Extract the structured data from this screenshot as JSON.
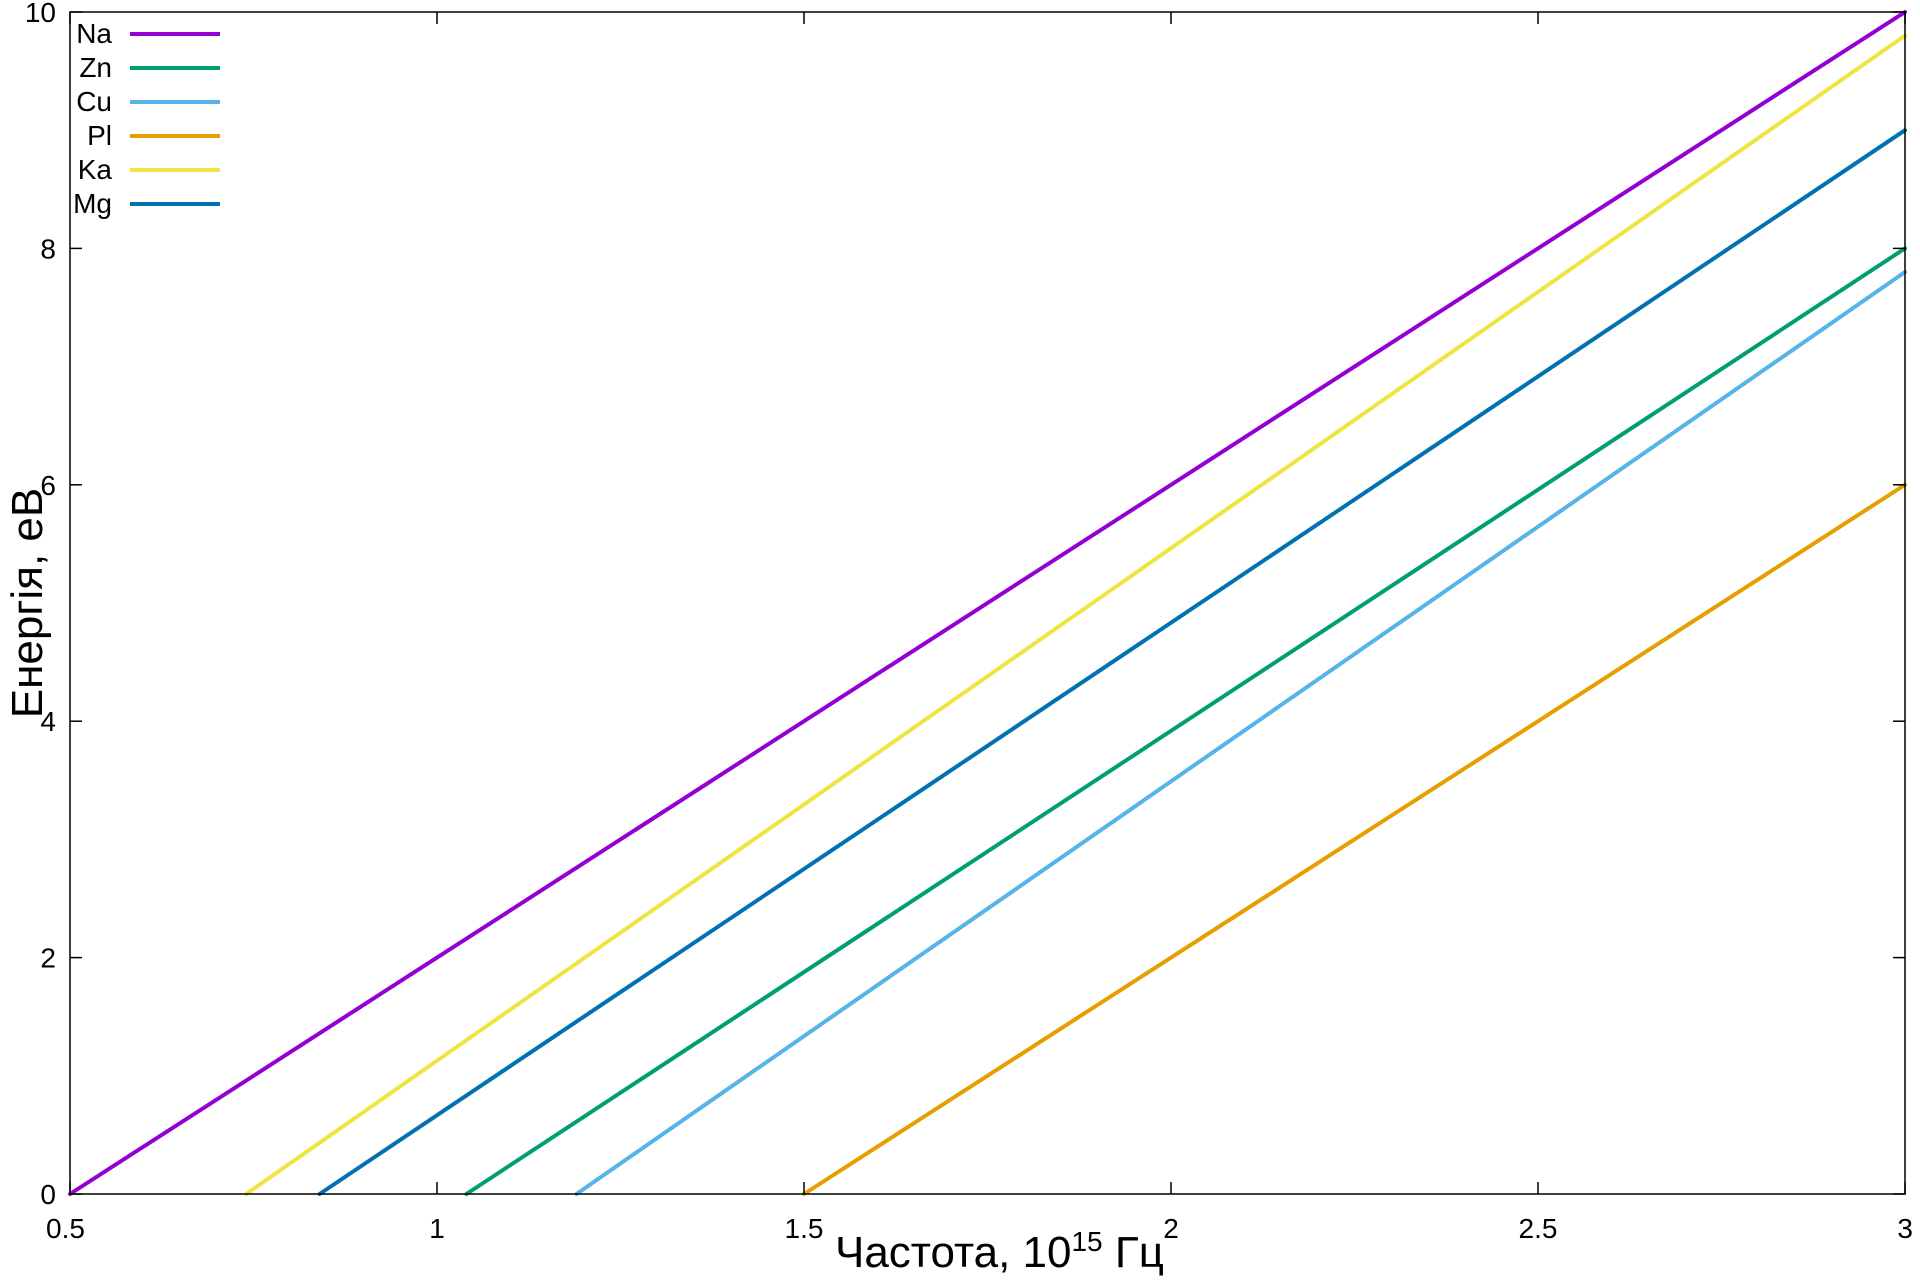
{
  "chart_data": {
    "type": "line",
    "xlabel": "Частота, 10",
    "xlabel_sup": "15",
    "xlabel_unit": " Гц",
    "ylabel": "Енергія, еВ",
    "xlim": [
      0.5,
      3
    ],
    "ylim": [
      0,
      10
    ],
    "xticks": [
      "0.5",
      "1",
      "1.5",
      "2",
      "2.5",
      "3"
    ],
    "yticks": [
      "0",
      "2",
      "4",
      "6",
      "8",
      "10"
    ],
    "grid": false,
    "legend_position": "top-left",
    "series": [
      {
        "name": "Na",
        "color": "#9400d3",
        "x": [
          0.5,
          3.0
        ],
        "y": [
          0,
          10.0
        ]
      },
      {
        "name": "Zn",
        "color": "#009e73",
        "x": [
          1.04,
          3.0
        ],
        "y": [
          0,
          8.0
        ]
      },
      {
        "name": "Cu",
        "color": "#56b4e9",
        "x": [
          1.19,
          3.0
        ],
        "y": [
          0,
          7.8
        ]
      },
      {
        "name": "Pl",
        "color": "#e69f00",
        "x": [
          1.5,
          3.0
        ],
        "y": [
          0,
          6.0
        ]
      },
      {
        "name": "Ka",
        "color": "#f0e442",
        "x": [
          0.74,
          3.0
        ],
        "y": [
          0,
          9.8
        ]
      },
      {
        "name": "Mg",
        "color": "#0072b2",
        "x": [
          0.84,
          3.0
        ],
        "y": [
          0,
          9.0
        ]
      }
    ]
  }
}
